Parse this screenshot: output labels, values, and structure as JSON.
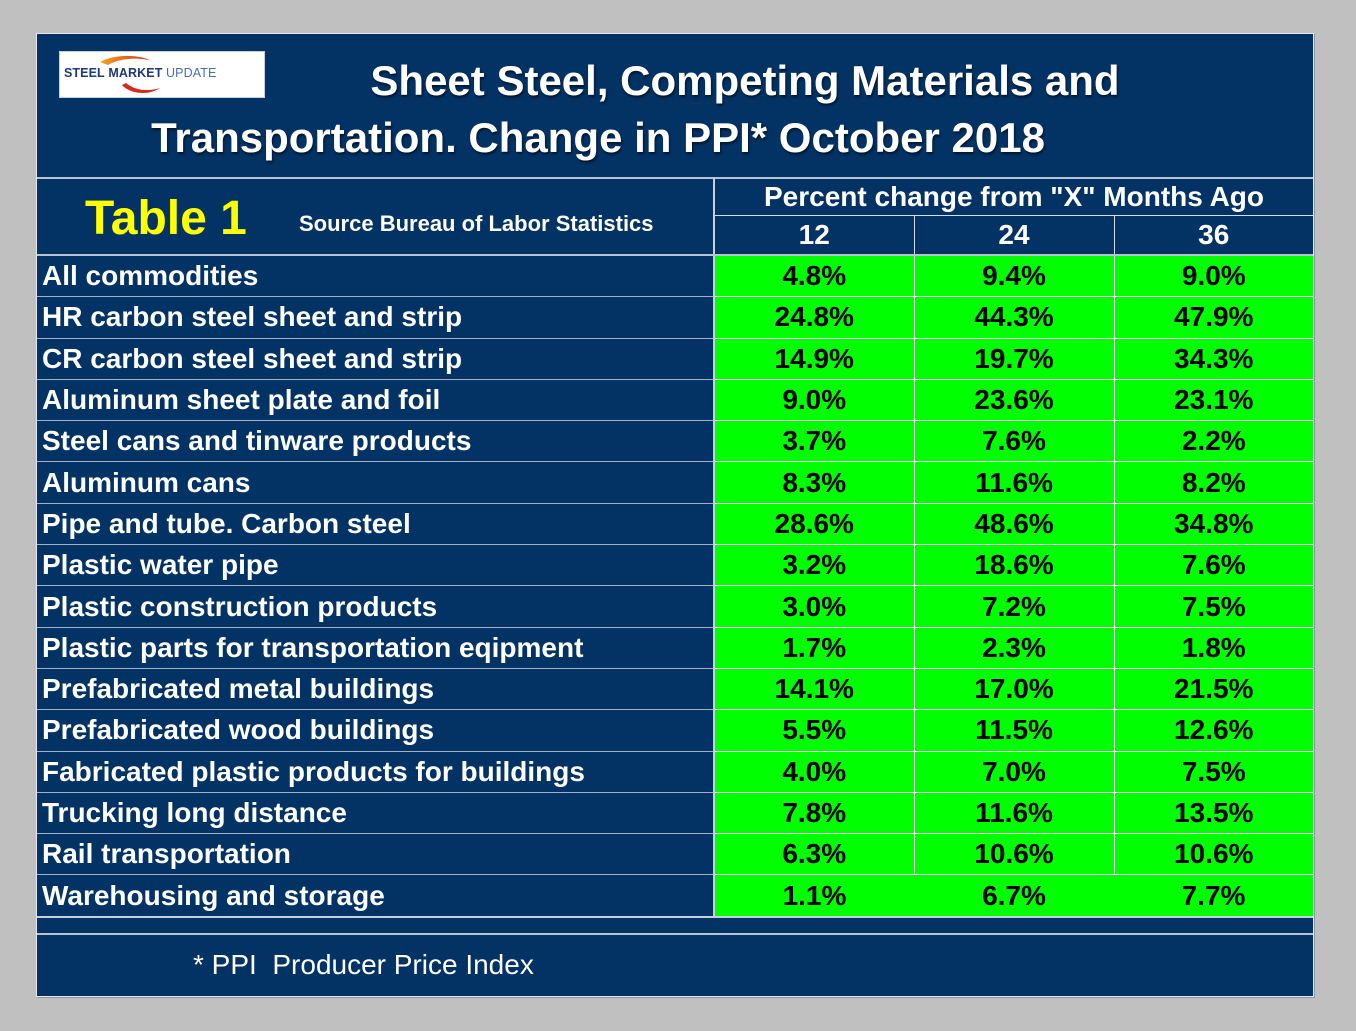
{
  "logo": {
    "word1": "STEEL",
    "word2": "MARKET",
    "word3": "UPDATE"
  },
  "title": {
    "line1": "Sheet Steel, Competing Materials and",
    "line2": "Transportation. Change in PPI* October 2018"
  },
  "table": {
    "label": "Table 1",
    "source": "Source Bureau of Labor Statistics",
    "span_header": "Percent change from \"X\" Months Ago",
    "columns": [
      "12",
      "24",
      "36"
    ],
    "rows": [
      {
        "name": "All commodities",
        "values": [
          "4.8%",
          "9.4%",
          "9.0%"
        ]
      },
      {
        "name": "HR carbon steel sheet and strip",
        "values": [
          "24.8%",
          "44.3%",
          "47.9%"
        ]
      },
      {
        "name": "CR carbon steel sheet and strip",
        "values": [
          "14.9%",
          "19.7%",
          "34.3%"
        ]
      },
      {
        "name": "Aluminum sheet plate and foil",
        "values": [
          "9.0%",
          "23.6%",
          "23.1%"
        ]
      },
      {
        "name": "Steel cans and tinware products",
        "values": [
          "3.7%",
          "7.6%",
          "2.2%"
        ]
      },
      {
        "name": "Aluminum cans",
        "values": [
          "8.3%",
          "11.6%",
          "8.2%"
        ]
      },
      {
        "name": "Pipe and tube. Carbon steel",
        "values": [
          "28.6%",
          "48.6%",
          "34.8%"
        ]
      },
      {
        "name": "Plastic water pipe",
        "values": [
          "3.2%",
          "18.6%",
          "7.6%"
        ]
      },
      {
        "name": "Plastic construction products",
        "values": [
          "3.0%",
          "7.2%",
          "7.5%"
        ]
      },
      {
        "name": "Plastic parts for transportation eqipment",
        "values": [
          "1.7%",
          "2.3%",
          "1.8%"
        ]
      },
      {
        "name": "Prefabricated metal buildings",
        "values": [
          "14.1%",
          "17.0%",
          "21.5%"
        ]
      },
      {
        "name": "Prefabricated wood buildings",
        "values": [
          "5.5%",
          "11.5%",
          "12.6%"
        ]
      },
      {
        "name": "Fabricated plastic products for buildings",
        "values": [
          "4.0%",
          "7.0%",
          "7.5%"
        ]
      },
      {
        "name": "Trucking long distance",
        "values": [
          "7.8%",
          "11.6%",
          "13.5%"
        ]
      },
      {
        "name": "Rail transportation",
        "values": [
          "6.3%",
          "10.6%",
          "10.6%"
        ]
      },
      {
        "name": "Warehousing and storage",
        "values": [
          "1.1%",
          "6.7%",
          "7.7%"
        ]
      }
    ]
  },
  "footer": {
    "note": "* PPI  Producer Price Index"
  },
  "colors": {
    "panel_bg": "#033264",
    "positive_cell": "#00ff00",
    "table_label": "#ffff00",
    "page_bg": "#c0c0c0"
  }
}
